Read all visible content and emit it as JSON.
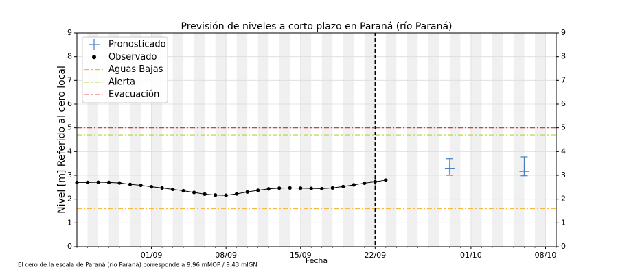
{
  "chart_data": {
    "type": "line",
    "title": "Previsión de niveles a corto plazo en Paraná (río Paraná)",
    "xlabel": "Fecha",
    "ylabel": "Nivel [m] Referido al cero local",
    "footnote": "El cero de la escala de Paraná (río Paraná) corresponde a 9.96 mMOP / 9.43 mIGN",
    "xlim": [
      "25/08",
      "09/10"
    ],
    "xticks": [
      "01/09",
      "08/09",
      "15/09",
      "22/09",
      "01/10",
      "08/10"
    ],
    "ylim": [
      0,
      9
    ],
    "yticks": [
      0,
      1,
      2,
      3,
      4,
      5,
      6,
      7,
      8,
      9
    ],
    "y2lim": [
      0,
      9
    ],
    "y2ticks": [
      0,
      1,
      2,
      3,
      4,
      5,
      6,
      7,
      8,
      9
    ],
    "grid": true,
    "legend": "upper left",
    "vline": "22/09",
    "series": [
      {
        "name": "Pronosticado",
        "type": "errorbar",
        "color": "#4a7fc1",
        "x": [
          "22/09",
          "29/09",
          "06/10"
        ],
        "values": [
          2.75,
          3.3,
          3.17
        ],
        "lower": [
          null,
          3.0,
          2.98
        ],
        "upper": [
          null,
          3.7,
          3.78
        ]
      },
      {
        "name": "Observado",
        "type": "line",
        "color": "#000000",
        "x": [
          "25/08",
          "26/08",
          "27/08",
          "28/08",
          "29/08",
          "30/08",
          "31/08",
          "01/09",
          "02/09",
          "03/09",
          "04/09",
          "05/09",
          "06/09",
          "07/09",
          "08/09",
          "09/09",
          "10/09",
          "11/09",
          "12/09",
          "13/09",
          "14/09",
          "15/09",
          "16/09",
          "17/09",
          "18/09",
          "19/09",
          "20/09",
          "21/09",
          "22/09",
          "23/09"
        ],
        "values": [
          2.7,
          2.7,
          2.71,
          2.7,
          2.68,
          2.62,
          2.58,
          2.52,
          2.47,
          2.41,
          2.35,
          2.28,
          2.21,
          2.17,
          2.16,
          2.22,
          2.3,
          2.37,
          2.43,
          2.46,
          2.47,
          2.46,
          2.45,
          2.44,
          2.47,
          2.53,
          2.6,
          2.67,
          2.73,
          2.8
        ]
      },
      {
        "name": "Aguas Bajas",
        "type": "hline",
        "color": "#f5b841",
        "values": [
          1.6
        ]
      },
      {
        "name": "Alerta",
        "type": "hline",
        "color": "#b8d432",
        "values": [
          4.7
        ]
      },
      {
        "name": "Evacuación",
        "type": "hline",
        "color": "#d62728",
        "values": [
          5.0
        ]
      }
    ]
  }
}
